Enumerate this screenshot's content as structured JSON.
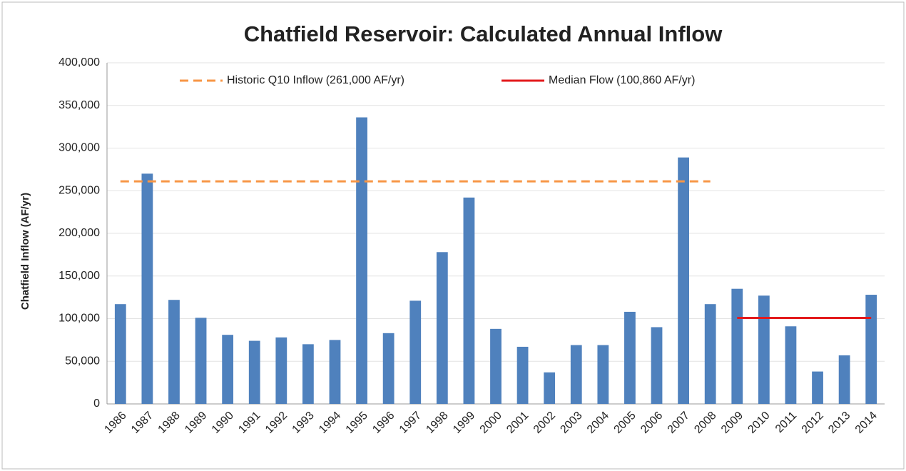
{
  "chart_data": {
    "type": "bar",
    "title": "Chatfield Reservoir: Calculated Annual Inflow",
    "y_label": "Chatfield Inflow (AF/yr)",
    "categories": [
      "1986",
      "1987",
      "1988",
      "1989",
      "1990",
      "1991",
      "1992",
      "1993",
      "1994",
      "1995",
      "1996",
      "1997",
      "1998",
      "1999",
      "2000",
      "2001",
      "2002",
      "2003",
      "2004",
      "2005",
      "2006",
      "2007",
      "2008",
      "2009",
      "2010",
      "2011",
      "2012",
      "2013",
      "2014"
    ],
    "values": [
      117000,
      270000,
      122000,
      101000,
      81000,
      74000,
      78000,
      70000,
      75000,
      336000,
      83000,
      121000,
      178000,
      242000,
      88000,
      67000,
      37000,
      69000,
      69000,
      108000,
      90000,
      289000,
      117000,
      135000,
      127000,
      91000,
      38000,
      57000,
      128000
    ],
    "color": "#4f81bd",
    "ylim": [
      0,
      400000
    ],
    "yticks": [
      0,
      {
        "value": 50000,
        "label": "50,000"
      },
      {
        "value": 100000,
        "label": "100,000"
      },
      {
        "value": 150000,
        "label": "150,000"
      },
      {
        "value": 200000,
        "label": "200,000"
      },
      {
        "value": 250000,
        "label": "250,000"
      },
      {
        "value": 300000,
        "label": "300,000"
      },
      {
        "value": 350000,
        "label": "350,000"
      },
      {
        "value": 400000,
        "label": "400,000"
      }
    ],
    "grid": true,
    "reference_lines": [
      {
        "name": "Historic Q10 Inflow (261,000 AF/yr)",
        "value": 261000,
        "from": "1986",
        "to": "2008",
        "color": "#f79646",
        "style": "dashed"
      },
      {
        "name": "Median Flow (100,860 AF/yr)",
        "value": 100860,
        "from": "2009",
        "to": "2014",
        "color": "#e31a1c",
        "style": "solid"
      }
    ]
  }
}
